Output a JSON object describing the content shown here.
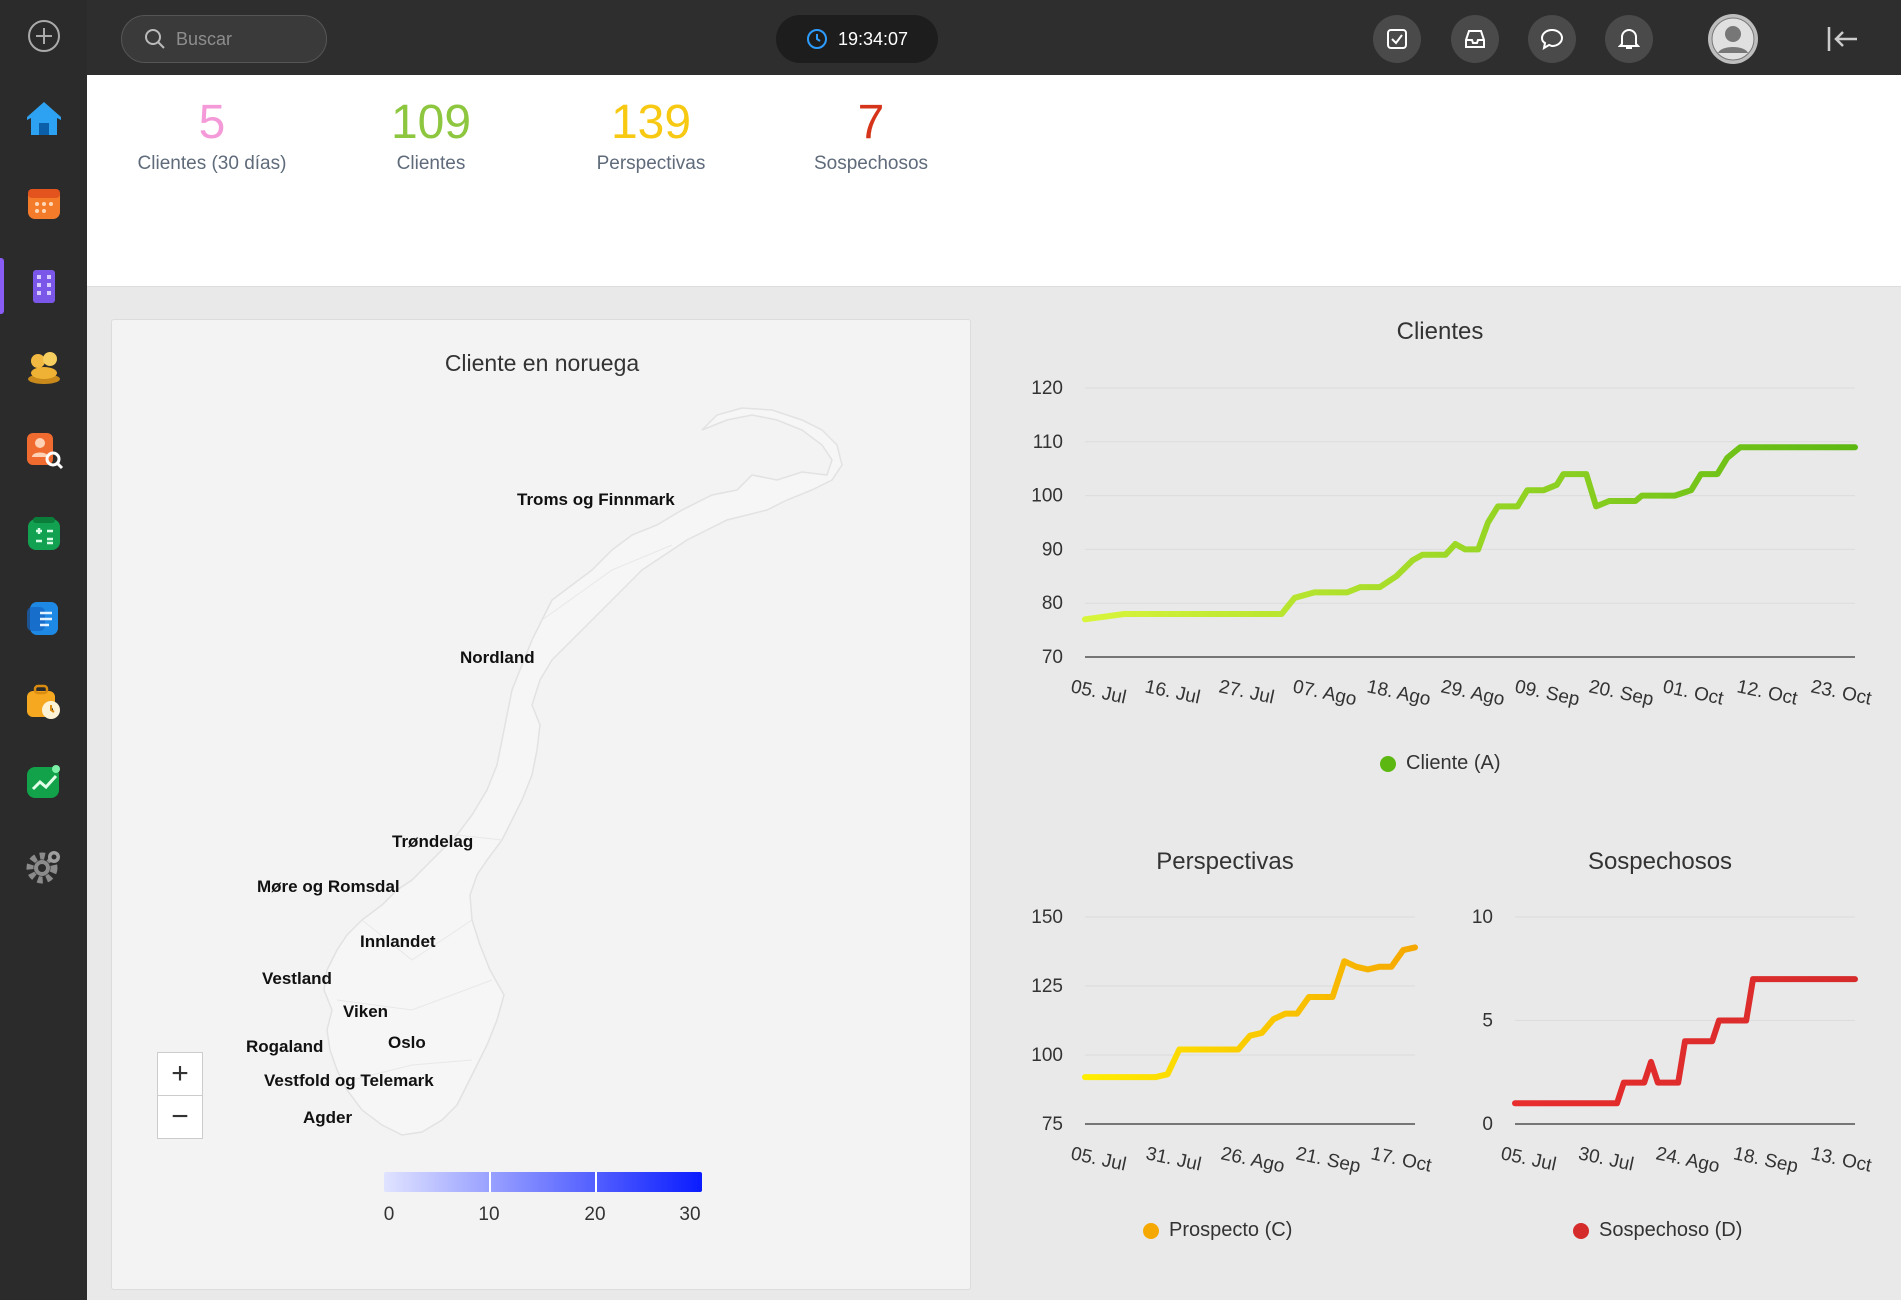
{
  "search": {
    "placeholder": "Buscar"
  },
  "clock": {
    "time": "19:34:07"
  },
  "kpis": [
    {
      "value": "5",
      "label": "Clientes (30 días)",
      "color": "#f59ad8"
    },
    {
      "value": "109",
      "label": "Clientes",
      "color": "#8dc63f"
    },
    {
      "value": "139",
      "label": "Perspectivas",
      "color": "#f7c912"
    },
    {
      "value": "7",
      "label": "Sospechosos",
      "color": "#d6341a"
    }
  ],
  "map": {
    "title": "Cliente en noruega",
    "regions": [
      "Troms og Finnmark",
      "Nordland",
      "Trøndelag",
      "Møre og Romsdal",
      "Innlandet",
      "Vestland",
      "Viken",
      "Rogaland",
      "Oslo",
      "Vestfold og Telemark",
      "Agder"
    ],
    "color_scale": {
      "ticks": [
        "0",
        "10",
        "20",
        "30"
      ],
      "from": "#e0e3ff",
      "to": "#0a1cff"
    },
    "zoom_in": "+",
    "zoom_out": "−"
  },
  "chart_data": [
    {
      "type": "line",
      "title": "Clientes",
      "legend": "Cliente (A)",
      "color": "#5cb811",
      "gradient_from": "#d8f53a",
      "yticks": [
        "120",
        "110",
        "100",
        "90",
        "80",
        "70"
      ],
      "ylim": [
        70,
        120
      ],
      "xticks": [
        "05. Jul",
        "16. Jul",
        "27. Jul",
        "07. Ago",
        "18. Ago",
        "29. Ago",
        "09. Sep",
        "20. Sep",
        "01. Oct",
        "12. Oct",
        "23. Oct"
      ],
      "x": [
        0,
        1.2,
        2,
        3,
        4,
        5,
        6,
        6.4,
        7,
        8,
        8.4,
        8.7,
        9,
        9.5,
        10,
        10.3,
        11,
        11.3,
        11.6,
        12,
        12.3,
        12.6,
        13.2,
        13.5,
        14,
        14.4,
        14.6,
        15,
        15.3,
        15.6,
        16,
        16.5,
        16.8,
        17,
        17.4,
        18,
        18.5,
        18.8,
        19,
        19.3,
        19.6,
        20,
        20.6,
        21,
        21.3,
        21.6,
        22.5,
        23.5
      ],
      "y": [
        77,
        78,
        78,
        78,
        78,
        78,
        78,
        81,
        82,
        82,
        83,
        83,
        83,
        85,
        88,
        89,
        89,
        91,
        90,
        90,
        95,
        98,
        98,
        101,
        101,
        102,
        104,
        104,
        104,
        98,
        99,
        99,
        99,
        100,
        100,
        100,
        101,
        104,
        104,
        104,
        107,
        109,
        109,
        109,
        109,
        109,
        109,
        109
      ]
    },
    {
      "type": "line",
      "title": "Perspectivas",
      "legend": "Prospecto (C)",
      "color": "#f5a800",
      "gradient_from": "#ffee00",
      "yticks": [
        "150",
        "125",
        "100",
        "75"
      ],
      "ylim": [
        75,
        150
      ],
      "xticks": [
        "05. Jul",
        "31. Jul",
        "26. Ago",
        "21. Sep",
        "17. Oct"
      ],
      "x": [
        0,
        0.6,
        1,
        1.2,
        1.4,
        1.6,
        2,
        2.3,
        2.6,
        2.8,
        3,
        3.2,
        3.4,
        3.6,
        3.8,
        4.0,
        4.2,
        4.4,
        4.6,
        4.8,
        5.0,
        5.2,
        5.4,
        5.6
      ],
      "y": [
        92,
        92,
        92,
        92,
        93,
        102,
        102,
        102,
        102,
        107,
        108,
        113,
        115,
        115,
        121,
        121,
        121,
        134,
        132,
        131,
        132,
        132,
        138,
        139
      ]
    },
    {
      "type": "line",
      "title": "Sospechosos",
      "legend": "Sospechoso (D)",
      "color": "#d62b2b",
      "gradient_from": "#e82d2d",
      "yticks": [
        "10",
        "5",
        "0"
      ],
      "ylim": [
        0,
        10
      ],
      "xticks": [
        "05. Jul",
        "30. Jul",
        "24. Ago",
        "18. Sep",
        "13. Oct"
      ],
      "x": [
        0,
        1.5,
        1.6,
        1.9,
        2,
        2.1,
        2.4,
        2.5,
        2.9,
        3.0,
        3.4,
        3.5,
        4.0,
        5.0
      ],
      "y": [
        1,
        1,
        2,
        2,
        3,
        2,
        2,
        4,
        4,
        5,
        5,
        7,
        7,
        7
      ]
    }
  ]
}
